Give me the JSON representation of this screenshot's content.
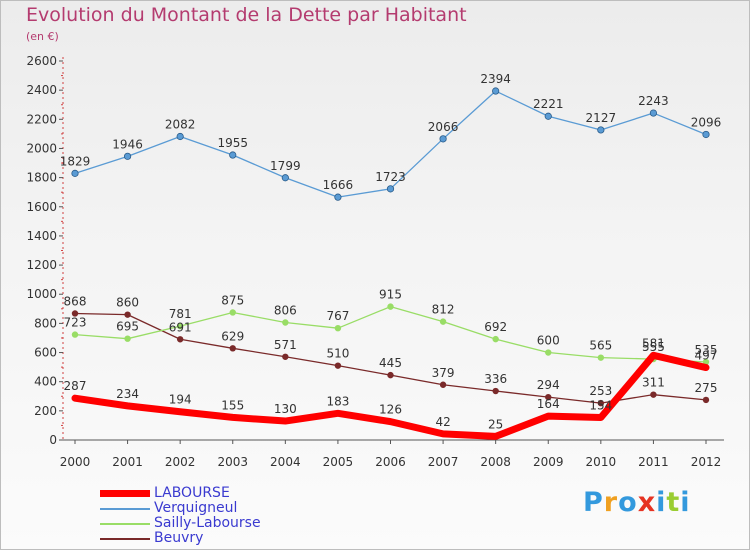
{
  "title": "Evolution du Montant de la Dette par Habitant",
  "subtitle": "(en €)",
  "logo": {
    "text": "Proxiti",
    "colors": [
      "#3399dd",
      "#f0a020",
      "#3399dd",
      "#e63322",
      "#3399dd",
      "#9acd32",
      "#3399dd"
    ]
  },
  "chart_data": {
    "type": "line",
    "title": "Evolution du Montant de la Dette par Habitant",
    "subtitle": "(en €)",
    "xlabel": "",
    "ylabel": "",
    "ylim": [
      0,
      2600
    ],
    "yticks": [
      0,
      200,
      400,
      600,
      800,
      1000,
      1200,
      1400,
      1600,
      1800,
      2000,
      2200,
      2400,
      2600
    ],
    "grid": false,
    "legend_position": "bottom-left",
    "x": [
      "2000",
      "2001",
      "2002",
      "2003",
      "2004",
      "2005",
      "2006",
      "2007",
      "2008",
      "2009",
      "2010",
      "2011",
      "2012"
    ],
    "series": [
      {
        "name": "Verquigneul",
        "color": "#5a9bd4",
        "values": [
          1829,
          1946,
          2082,
          1955,
          1799,
          1666,
          1723,
          2066,
          2394,
          2221,
          2127,
          2243,
          2096
        ]
      },
      {
        "name": "Sailly-Labourse",
        "color": "#99dd66",
        "values": [
          723,
          695,
          781,
          875,
          806,
          767,
          915,
          812,
          692,
          600,
          565,
          555,
          535
        ]
      },
      {
        "name": "Beuvry",
        "color": "#7a2a2a",
        "values": [
          868,
          860,
          691,
          629,
          571,
          510,
          445,
          379,
          336,
          294,
          253,
          311,
          275
        ]
      },
      {
        "name": "LABOURSE",
        "color": "#ff0000",
        "values": [
          287,
          234,
          194,
          155,
          130,
          183,
          126,
          42,
          25,
          164,
          154,
          581,
          497
        ]
      }
    ],
    "legend_order": [
      "LABOURSE",
      "Verquigneul",
      "Sailly-Labourse",
      "Beuvry"
    ]
  }
}
